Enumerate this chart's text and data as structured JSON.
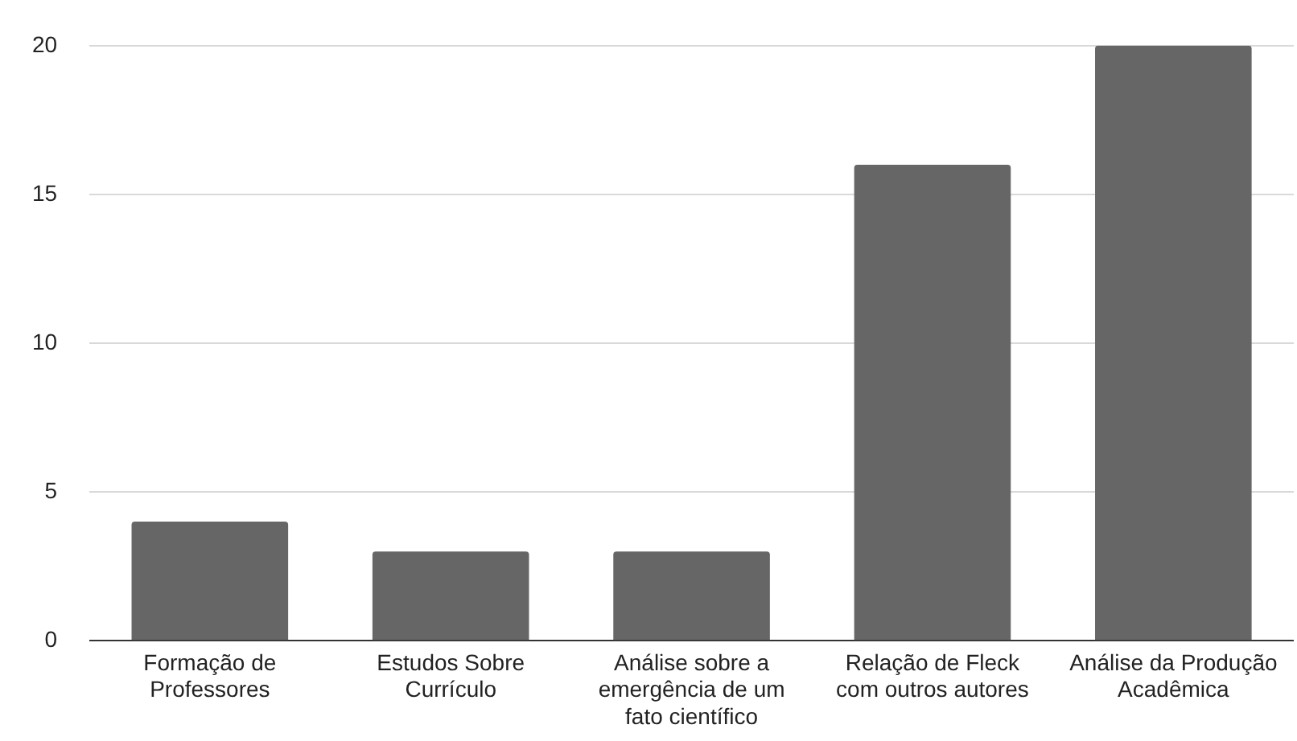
{
  "chart_data": {
    "type": "bar",
    "categories": [
      "Formação de Professores",
      "Estudos Sobre Currículo",
      "Análise sobre a emergência de um fato científico",
      "Relação de Fleck com outros autores",
      "Análise da Produção Acadêmica"
    ],
    "values": [
      4,
      3,
      3,
      16,
      20
    ],
    "color": "#666666",
    "ylim": [
      0,
      20
    ],
    "yticks": [
      0,
      5,
      10,
      15,
      20
    ],
    "grid": "y",
    "legend": false
  }
}
